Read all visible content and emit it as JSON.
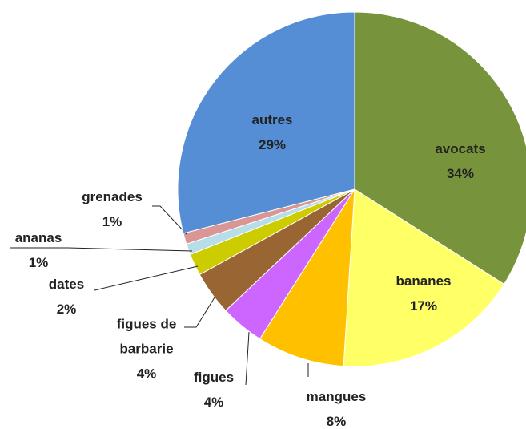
{
  "chart_data": {
    "type": "pie",
    "categories": [
      "avocats",
      "bananes",
      "mangues",
      "figues",
      "figues de barbarie",
      "dates",
      "ananas",
      "grenades",
      "autres"
    ],
    "values": [
      34,
      17,
      8,
      4,
      4,
      2,
      1,
      1,
      29
    ],
    "value_labels": [
      "34%",
      "17%",
      "8%",
      "4%",
      "4%",
      "2%",
      "1%",
      "1%",
      "29%"
    ],
    "colors": [
      "#77933c",
      "#ffff66",
      "#ffc000",
      "#cc66ff",
      "#996633",
      "#cccc00",
      "#b7dee8",
      "#d99694",
      "#558ed5"
    ]
  }
}
